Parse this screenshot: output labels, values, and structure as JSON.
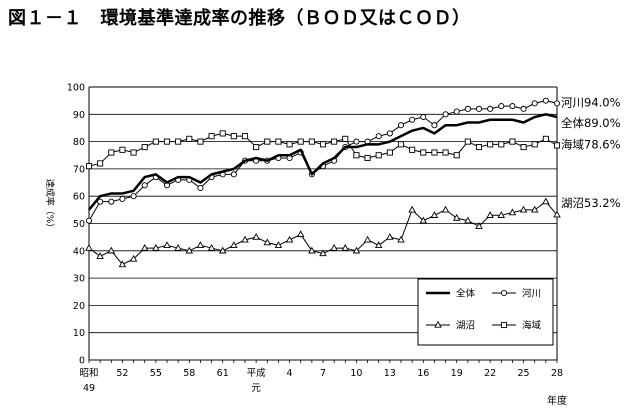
{
  "figure": {
    "title": "図１－１　環境基準達成率の推移（ＢＯＤ又はＣＯＤ）"
  },
  "chart_data": {
    "type": "line",
    "title": "図１－１　環境基準達成率の推移（ＢＯＤ又はＣＯＤ）",
    "ylabel": "達成率（%）",
    "xlabel": "年度",
    "ylim": [
      0,
      100
    ],
    "yticks": [
      "0",
      "10",
      "20",
      "30",
      "40",
      "50",
      "60",
      "70",
      "80",
      "90",
      "100"
    ],
    "x": [
      "昭和49",
      "50",
      "51",
      "52",
      "53",
      "54",
      "55",
      "56",
      "57",
      "58",
      "59",
      "60",
      "61",
      "62",
      "63",
      "平成元",
      "2",
      "3",
      "4",
      "5",
      "6",
      "7",
      "8",
      "9",
      "10",
      "11",
      "12",
      "13",
      "14",
      "15",
      "16",
      "17",
      "18",
      "19",
      "20",
      "21",
      "22",
      "23",
      "24",
      "25",
      "26",
      "27",
      "28"
    ],
    "x_tick_labels": [
      {
        "text": "昭和",
        "sub": "49",
        "index": 0
      },
      {
        "text": "52",
        "index": 3
      },
      {
        "text": "55",
        "index": 6
      },
      {
        "text": "58",
        "index": 9
      },
      {
        "text": "61",
        "index": 12
      },
      {
        "text": "平成",
        "sub": "元",
        "index": 15
      },
      {
        "text": "4",
        "index": 18
      },
      {
        "text": "7",
        "index": 21
      },
      {
        "text": "10",
        "index": 24
      },
      {
        "text": "13",
        "index": 27
      },
      {
        "text": "16",
        "index": 30
      },
      {
        "text": "19",
        "index": 33
      },
      {
        "text": "22",
        "index": 36
      },
      {
        "text": "25",
        "index": 39
      },
      {
        "text": "28",
        "index": 42
      }
    ],
    "grid": true,
    "legend_position": "bottom-right",
    "series": [
      {
        "name": "全体",
        "marker": "none",
        "stroke_width": 2.5,
        "values": [
          55,
          60,
          61,
          61,
          62,
          67,
          68,
          65,
          67,
          67,
          65,
          68,
          69,
          70,
          73,
          74,
          73,
          75,
          75,
          77,
          68,
          72,
          74,
          78,
          78,
          79,
          79,
          80,
          82,
          84,
          85,
          83,
          86,
          86,
          87,
          87,
          88,
          88,
          88,
          87,
          89,
          90,
          89
        ],
        "end_label": "全体89.0%"
      },
      {
        "name": "河川",
        "marker": "circle",
        "stroke_width": 1,
        "values": [
          51,
          58,
          58,
          59,
          60,
          64,
          67,
          64,
          66,
          66,
          63,
          67,
          68,
          68,
          73,
          73,
          73,
          74,
          74,
          76,
          68,
          71,
          73,
          78,
          80,
          80,
          82,
          83,
          86,
          88,
          89,
          86,
          90,
          91,
          92,
          92,
          92,
          93,
          93,
          92,
          94,
          95,
          94
        ],
        "end_label": "河川94.0%"
      },
      {
        "name": "湖沼",
        "marker": "triangle",
        "stroke_width": 1,
        "values": [
          41,
          38,
          40,
          35,
          37,
          41,
          41,
          42,
          41,
          40,
          42,
          41,
          40,
          42,
          44,
          45,
          43,
          42,
          44,
          46,
          40,
          39,
          41,
          41,
          40,
          44,
          42,
          45,
          44,
          55,
          51,
          53,
          55,
          52,
          51,
          49,
          53,
          53,
          54,
          55,
          55,
          58,
          53.2
        ],
        "end_label": "湖沼53.2%"
      },
      {
        "name": "海域",
        "marker": "square",
        "stroke_width": 1,
        "values": [
          71,
          72,
          76,
          77,
          76,
          78,
          80,
          80,
          80,
          81,
          80,
          82,
          83,
          82,
          82,
          78,
          80,
          80,
          79,
          80,
          80,
          79,
          80,
          81,
          75,
          74,
          75,
          76,
          79,
          77,
          76,
          76,
          76,
          75,
          80,
          78,
          79,
          79,
          80,
          78,
          79,
          81,
          78.6
        ],
        "end_label": "海域78.6%"
      }
    ]
  }
}
